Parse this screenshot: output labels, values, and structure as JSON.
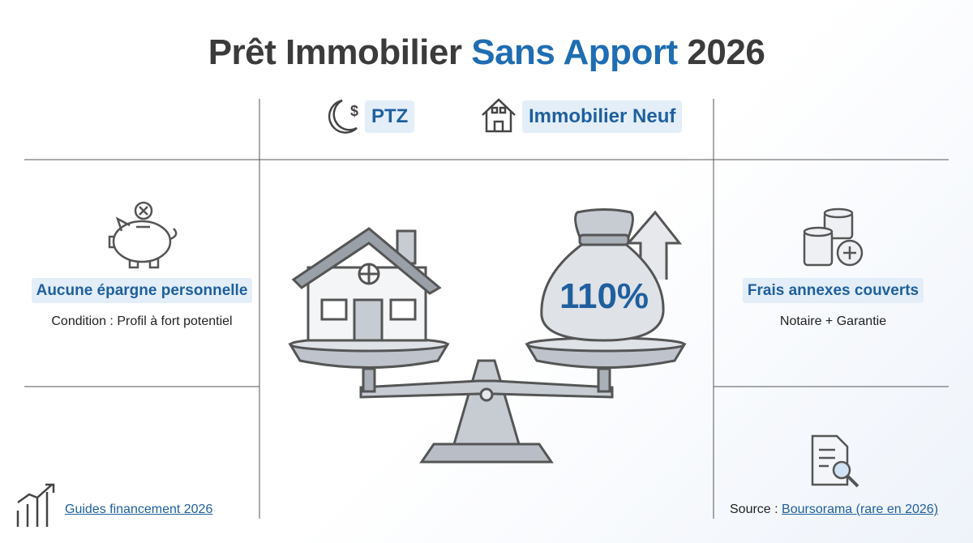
{
  "header": {
    "title_start": "Prêt Immobilier",
    "title_highlight": "Sans Apport",
    "title_end": "2026"
  },
  "tags": [
    {
      "label": "PTZ"
    },
    {
      "label": "Immobilier Neuf"
    }
  ],
  "left_panel": {
    "title": "Aucune épargne personnelle",
    "subtitle": "Condition : Profil à fort potentiel"
  },
  "right_panel": {
    "title": "Frais annexes couverts",
    "subtitle": "Notaire + Garantie"
  },
  "illustration": {
    "bag_label": "110%"
  },
  "footer": {
    "guide_link": "Guides financement 2026",
    "source_prefix": "Source :",
    "source_link": "Boursorama (rare en 2026)"
  }
}
